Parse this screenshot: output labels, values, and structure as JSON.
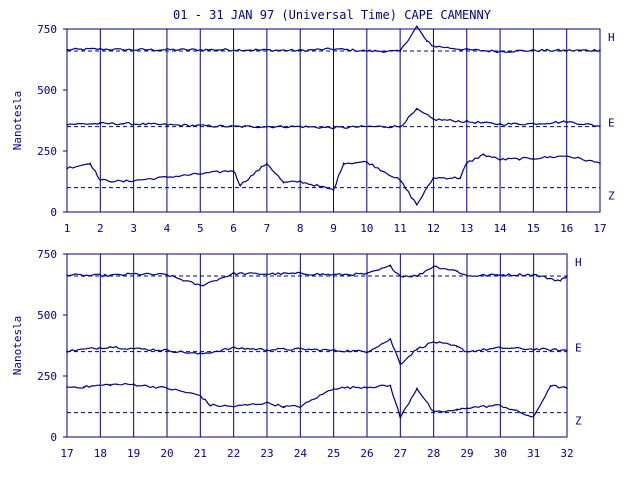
{
  "title": "01 - 31 JAN 97 (Universal Time) CAPE CAMENNY",
  "colors": {
    "ink": "#00008b",
    "background": "#ffffff"
  },
  "chart_data": [
    {
      "type": "line",
      "panel": "top",
      "ylabel": "Nanotesla",
      "xlim": [
        1,
        17
      ],
      "ylim": [
        0,
        750
      ],
      "yticks": [
        0,
        250,
        500,
        750
      ],
      "xticks": [
        1,
        2,
        3,
        4,
        5,
        6,
        7,
        8,
        9,
        10,
        11,
        12,
        13,
        14,
        15,
        16,
        17
      ],
      "grid": "vertical lines at each day",
      "series": [
        {
          "name": "H",
          "baseline": 660,
          "values": [
            [
              1.0,
              665
            ],
            [
              2.0,
              668
            ],
            [
              2.7,
              665
            ],
            [
              6.0,
              665
            ],
            [
              8.0,
              662
            ],
            [
              9.0,
              668
            ],
            [
              10.0,
              660
            ],
            [
              11.0,
              658
            ],
            [
              11.5,
              760
            ],
            [
              11.8,
              700
            ],
            [
              12.0,
              680
            ],
            [
              13.0,
              665
            ],
            [
              14.0,
              658
            ],
            [
              15.0,
              662
            ],
            [
              16.0,
              662
            ],
            [
              17.0,
              663
            ]
          ]
        },
        {
          "name": "E",
          "baseline": 350,
          "values": [
            [
              1.0,
              360
            ],
            [
              2.0,
              362
            ],
            [
              2.7,
              362
            ],
            [
              6.0,
              350
            ],
            [
              8.0,
              350
            ],
            [
              9.0,
              345
            ],
            [
              10.0,
              350
            ],
            [
              11.0,
              350
            ],
            [
              11.5,
              420
            ],
            [
              12.0,
              380
            ],
            [
              13.0,
              370
            ],
            [
              14.0,
              360
            ],
            [
              15.0,
              362
            ],
            [
              16.0,
              370
            ],
            [
              17.0,
              352
            ]
          ]
        },
        {
          "name": "Z",
          "baseline": 100,
          "values": [
            [
              1.0,
              180
            ],
            [
              1.7,
              200
            ],
            [
              2.0,
              130
            ],
            [
              2.7,
              125
            ],
            [
              6.0,
              170
            ],
            [
              6.2,
              110
            ],
            [
              7.0,
              200
            ],
            [
              7.5,
              120
            ],
            [
              8.0,
              125
            ],
            [
              9.0,
              90
            ],
            [
              9.3,
              200
            ],
            [
              10.0,
              205
            ],
            [
              11.0,
              130
            ],
            [
              11.5,
              30
            ],
            [
              12.0,
              140
            ],
            [
              12.8,
              140
            ],
            [
              13.0,
              200
            ],
            [
              13.5,
              235
            ],
            [
              14.0,
              215
            ],
            [
              15.0,
              220
            ],
            [
              16.0,
              230
            ],
            [
              17.0,
              200
            ]
          ]
        }
      ]
    },
    {
      "type": "line",
      "panel": "bottom",
      "ylabel": "Nanotesla",
      "xlim": [
        17,
        32
      ],
      "ylim": [
        0,
        750
      ],
      "yticks": [
        0,
        250,
        500,
        750
      ],
      "xticks": [
        17,
        18,
        19,
        20,
        21,
        22,
        23,
        24,
        25,
        26,
        27,
        28,
        29,
        30,
        31,
        32
      ],
      "grid": "vertical lines at each day",
      "series": [
        {
          "name": "H",
          "baseline": 660,
          "values": [
            [
              17.0,
              665
            ],
            [
              17.5,
              662
            ],
            [
              18.3,
              662
            ],
            [
              19.0,
              668
            ],
            [
              20.0,
              665
            ],
            [
              21.0,
              620
            ],
            [
              22.0,
              670
            ],
            [
              23.0,
              668
            ],
            [
              24.0,
              670
            ],
            [
              25.0,
              665
            ],
            [
              26.0,
              668
            ],
            [
              26.7,
              700
            ],
            [
              27.0,
              660
            ],
            [
              27.5,
              660
            ],
            [
              28.0,
              700
            ],
            [
              28.7,
              680
            ],
            [
              29.0,
              660
            ],
            [
              30.0,
              665
            ],
            [
              31.0,
              665
            ],
            [
              31.8,
              640
            ],
            [
              32.0,
              660
            ]
          ]
        },
        {
          "name": "E",
          "baseline": 350,
          "values": [
            [
              17.0,
              352
            ],
            [
              18.3,
              370
            ],
            [
              19.0,
              362
            ],
            [
              20.0,
              355
            ],
            [
              21.0,
              340
            ],
            [
              22.0,
              365
            ],
            [
              23.0,
              358
            ],
            [
              24.0,
              360
            ],
            [
              25.0,
              355
            ],
            [
              26.0,
              350
            ],
            [
              26.7,
              400
            ],
            [
              27.0,
              300
            ],
            [
              27.5,
              360
            ],
            [
              28.0,
              390
            ],
            [
              28.7,
              370
            ],
            [
              29.0,
              350
            ],
            [
              30.0,
              365
            ],
            [
              31.0,
              360
            ],
            [
              32.0,
              355
            ]
          ]
        },
        {
          "name": "Z",
          "baseline": 100,
          "values": [
            [
              17.0,
              205
            ],
            [
              17.5,
              205
            ],
            [
              18.3,
              215
            ],
            [
              19.0,
              215
            ],
            [
              20.0,
              200
            ],
            [
              21.0,
              170
            ],
            [
              21.3,
              130
            ],
            [
              22.0,
              125
            ],
            [
              23.0,
              140
            ],
            [
              23.5,
              125
            ],
            [
              24.0,
              125
            ],
            [
              25.0,
              200
            ],
            [
              26.0,
              205
            ],
            [
              26.7,
              210
            ],
            [
              27.0,
              80
            ],
            [
              27.5,
              200
            ],
            [
              28.0,
              100
            ],
            [
              28.7,
              110
            ],
            [
              29.0,
              120
            ],
            [
              30.0,
              130
            ],
            [
              31.0,
              80
            ],
            [
              31.5,
              210
            ],
            [
              32.0,
              200
            ]
          ]
        }
      ]
    }
  ]
}
